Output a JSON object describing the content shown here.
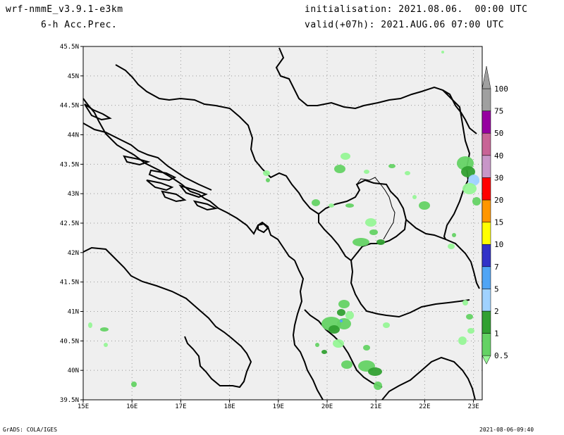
{
  "header": {
    "model": "wrf-nmmE_v3.9.1-e3km",
    "field": "6-h Acc.Prec.",
    "init": "initialisation: 2021.08.06.  00:00 UTC",
    "valid": "valid(+07h): 2021.AUG.06 07:00 UTC"
  },
  "map": {
    "lat_ticks": [
      "45.5N",
      "45N",
      "44.5N",
      "44N",
      "43.5N",
      "43N",
      "42.5N",
      "42N",
      "41.5N",
      "41N",
      "40.5N",
      "40N",
      "39.5N"
    ],
    "lon_ticks": [
      "15E",
      "16E",
      "17E",
      "18E",
      "19E",
      "20E",
      "21E",
      "22E",
      "23E"
    ],
    "background_color": "#efefef"
  },
  "legend": {
    "levels": [
      "0.5",
      "1",
      "2",
      "5",
      "7",
      "10",
      "15",
      "20",
      "30",
      "40",
      "50",
      "75",
      "100"
    ],
    "colors": [
      "#96f596",
      "#64d264",
      "#32a032",
      "#a0d2ff",
      "#50a5f5",
      "#3232c8",
      "#ffff00",
      "#ff9600",
      "#ff0000",
      "#c896c8",
      "#c86496",
      "#9600a0",
      "#a0a0a0"
    ]
  },
  "footer": {
    "credit": "GrADS: COLA/IGES",
    "timestamp": "2021-08-06-09:40"
  }
}
